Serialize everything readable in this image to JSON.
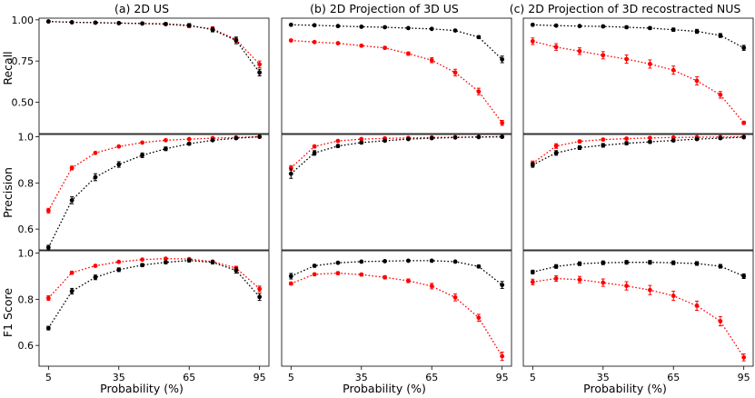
{
  "colors": {
    "red": "#ff0000",
    "black": "#000000"
  },
  "column_titles": [
    "(a) 2D US",
    "(b) 2D Projection of 3D US",
    "(c) 2D Projection of 3D recostracted NUS"
  ],
  "row_labels": [
    "Recall",
    "Precision",
    "F1 Score"
  ],
  "x_axis_label": "Probability (%)",
  "chart_data": [
    {
      "type": "line",
      "panel": "Recall (a)",
      "title": "(a) 2D US",
      "ylabel": "Recall",
      "xlabel": "",
      "x": [
        5,
        15,
        25,
        35,
        45,
        55,
        65,
        75,
        85,
        95
      ],
      "xlim": [
        1,
        99
      ],
      "ylim": [
        0.31,
        1.01
      ],
      "yticks": [
        0.5,
        0.75,
        1.0
      ],
      "ytick_labels": [
        "0.50",
        "0.75",
        "1.00"
      ],
      "xticks": [],
      "xtick_labels": [],
      "series": [
        {
          "name": "red",
          "values": [
            0.99,
            0.985,
            0.983,
            0.98,
            0.977,
            0.973,
            0.962,
            0.945,
            0.88,
            0.73
          ],
          "errors": [
            0.003,
            0.003,
            0.003,
            0.004,
            0.005,
            0.007,
            0.01,
            0.013,
            0.015,
            0.02
          ]
        },
        {
          "name": "black",
          "values": [
            0.99,
            0.985,
            0.983,
            0.98,
            0.978,
            0.975,
            0.967,
            0.94,
            0.875,
            0.68
          ],
          "errors": [
            0.003,
            0.003,
            0.003,
            0.004,
            0.005,
            0.007,
            0.01,
            0.013,
            0.02,
            0.02
          ]
        }
      ]
    },
    {
      "type": "line",
      "panel": "Recall (b)",
      "title": "(b) 2D Projection of 3D US",
      "ylabel": "",
      "xlabel": "",
      "x": [
        5,
        15,
        25,
        35,
        45,
        55,
        65,
        75,
        85,
        95
      ],
      "xlim": [
        1,
        99
      ],
      "ylim": [
        0.31,
        1.01
      ],
      "yticks": [],
      "ytick_labels": [],
      "xticks": [],
      "xtick_labels": [],
      "series": [
        {
          "name": "red",
          "values": [
            0.875,
            0.865,
            0.858,
            0.843,
            0.83,
            0.795,
            0.755,
            0.68,
            0.565,
            0.375
          ],
          "errors": [
            0.005,
            0.005,
            0.006,
            0.007,
            0.008,
            0.01,
            0.015,
            0.02,
            0.02,
            0.015
          ]
        },
        {
          "name": "black",
          "values": [
            0.97,
            0.967,
            0.962,
            0.958,
            0.955,
            0.95,
            0.945,
            0.935,
            0.895,
            0.76
          ],
          "errors": [
            0.003,
            0.003,
            0.003,
            0.003,
            0.004,
            0.004,
            0.004,
            0.005,
            0.008,
            0.02
          ]
        }
      ]
    },
    {
      "type": "line",
      "panel": "Recall (c)",
      "title": "(c) 2D Projection of 3D recostracted NUS",
      "ylabel": "",
      "xlabel": "",
      "x": [
        5,
        15,
        25,
        35,
        45,
        55,
        65,
        75,
        85,
        95
      ],
      "xlim": [
        1,
        99
      ],
      "ylim": [
        0.31,
        1.01
      ],
      "yticks": [],
      "ytick_labels": [],
      "xticks": [],
      "xtick_labels": [],
      "series": [
        {
          "name": "red",
          "values": [
            0.87,
            0.835,
            0.81,
            0.785,
            0.762,
            0.732,
            0.695,
            0.63,
            0.545,
            0.375
          ],
          "errors": [
            0.02,
            0.02,
            0.02,
            0.022,
            0.025,
            0.025,
            0.025,
            0.025,
            0.02,
            0.01
          ]
        },
        {
          "name": "black",
          "values": [
            0.97,
            0.965,
            0.962,
            0.96,
            0.955,
            0.95,
            0.94,
            0.93,
            0.905,
            0.83
          ],
          "errors": [
            0.004,
            0.005,
            0.005,
            0.006,
            0.007,
            0.008,
            0.01,
            0.012,
            0.012,
            0.015
          ]
        }
      ]
    },
    {
      "type": "line",
      "panel": "Precision (a)",
      "title": "",
      "ylabel": "Precision",
      "xlabel": "",
      "x": [
        5,
        15,
        25,
        35,
        45,
        55,
        65,
        75,
        85,
        95
      ],
      "xlim": [
        1,
        99
      ],
      "ylim": [
        0.51,
        1.01
      ],
      "yticks": [
        0.6,
        0.8,
        1.0
      ],
      "ytick_labels": [
        "0.6",
        "0.8",
        "1.0"
      ],
      "xticks": [],
      "xtick_labels": [],
      "series": [
        {
          "name": "red",
          "values": [
            0.68,
            0.865,
            0.93,
            0.958,
            0.975,
            0.985,
            0.99,
            0.994,
            0.997,
            1.0
          ],
          "errors": [
            0.01,
            0.008,
            0.005,
            0.003,
            0.003,
            0.002,
            0.002,
            0.002,
            0.001,
            0.001
          ]
        },
        {
          "name": "black",
          "values": [
            0.52,
            0.725,
            0.825,
            0.88,
            0.92,
            0.948,
            0.97,
            0.985,
            0.994,
            1.0
          ],
          "errors": [
            0.01,
            0.015,
            0.015,
            0.012,
            0.01,
            0.008,
            0.006,
            0.004,
            0.003,
            0.001
          ]
        }
      ]
    },
    {
      "type": "line",
      "panel": "Precision (b)",
      "title": "",
      "ylabel": "",
      "xlabel": "",
      "x": [
        5,
        15,
        25,
        35,
        45,
        55,
        65,
        75,
        85,
        95
      ],
      "xlim": [
        1,
        99
      ],
      "ylim": [
        0.51,
        1.01
      ],
      "yticks": [],
      "ytick_labels": [],
      "xticks": [],
      "xtick_labels": [],
      "series": [
        {
          "name": "red",
          "values": [
            0.865,
            0.958,
            0.982,
            0.99,
            0.993,
            0.995,
            0.997,
            0.998,
            0.999,
            1.0
          ],
          "errors": [
            0.01,
            0.006,
            0.004,
            0.003,
            0.002,
            0.002,
            0.001,
            0.001,
            0.001,
            0.001
          ]
        },
        {
          "name": "black",
          "values": [
            0.84,
            0.93,
            0.96,
            0.975,
            0.983,
            0.99,
            0.994,
            0.997,
            0.999,
            1.0
          ],
          "errors": [
            0.02,
            0.01,
            0.006,
            0.005,
            0.004,
            0.003,
            0.002,
            0.002,
            0.001,
            0.001
          ]
        }
      ]
    },
    {
      "type": "line",
      "panel": "Precision (c)",
      "title": "",
      "ylabel": "",
      "xlabel": "",
      "x": [
        5,
        15,
        25,
        35,
        45,
        55,
        65,
        75,
        85,
        95
      ],
      "xlim": [
        1,
        99
      ],
      "ylim": [
        0.51,
        1.01
      ],
      "yticks": [],
      "ytick_labels": [],
      "xticks": [],
      "xtick_labels": [],
      "series": [
        {
          "name": "red",
          "values": [
            0.885,
            0.96,
            0.98,
            0.988,
            0.992,
            0.995,
            0.997,
            0.998,
            0.999,
            1.0
          ],
          "errors": [
            0.01,
            0.01,
            0.006,
            0.005,
            0.004,
            0.003,
            0.003,
            0.002,
            0.002,
            0.001
          ]
        },
        {
          "name": "black",
          "values": [
            0.878,
            0.93,
            0.953,
            0.963,
            0.972,
            0.978,
            0.984,
            0.99,
            0.994,
            0.998
          ],
          "errors": [
            0.01,
            0.01,
            0.008,
            0.008,
            0.007,
            0.006,
            0.005,
            0.004,
            0.004,
            0.002
          ]
        }
      ]
    },
    {
      "type": "line",
      "panel": "F1 Score (a)",
      "title": "",
      "ylabel": "F1 Score",
      "xlabel": "Probability (%)",
      "x": [
        5,
        15,
        25,
        35,
        45,
        55,
        65,
        75,
        85,
        95
      ],
      "xlim": [
        1,
        99
      ],
      "ylim": [
        0.51,
        1.01
      ],
      "yticks": [
        0.6,
        0.8,
        1.0
      ],
      "ytick_labels": [
        "0.6",
        "0.8",
        "1.0"
      ],
      "xticks": [
        5,
        35,
        65,
        95
      ],
      "xtick_labels": [
        "5",
        "35",
        "65",
        "95"
      ],
      "series": [
        {
          "name": "red",
          "values": [
            0.805,
            0.915,
            0.945,
            0.962,
            0.972,
            0.976,
            0.974,
            0.963,
            0.935,
            0.845
          ],
          "errors": [
            0.01,
            0.006,
            0.004,
            0.003,
            0.003,
            0.004,
            0.005,
            0.006,
            0.008,
            0.012
          ]
        },
        {
          "name": "black",
          "values": [
            0.675,
            0.835,
            0.895,
            0.928,
            0.948,
            0.96,
            0.968,
            0.96,
            0.925,
            0.81
          ],
          "errors": [
            0.008,
            0.012,
            0.01,
            0.008,
            0.007,
            0.006,
            0.006,
            0.007,
            0.012,
            0.015
          ]
        }
      ]
    },
    {
      "type": "line",
      "panel": "F1 Score (b)",
      "title": "",
      "ylabel": "",
      "xlabel": "Probability (%)",
      "x": [
        5,
        15,
        25,
        35,
        45,
        55,
        65,
        75,
        85,
        95
      ],
      "xlim": [
        1,
        99
      ],
      "ylim": [
        0.51,
        1.01
      ],
      "yticks": [],
      "ytick_labels": [],
      "xticks": [
        5,
        35,
        65,
        95
      ],
      "xtick_labels": [
        "5",
        "35",
        "65",
        "95"
      ],
      "series": [
        {
          "name": "red",
          "values": [
            0.868,
            0.908,
            0.913,
            0.907,
            0.895,
            0.88,
            0.857,
            0.808,
            0.72,
            0.553
          ],
          "errors": [
            0.006,
            0.005,
            0.006,
            0.006,
            0.007,
            0.008,
            0.012,
            0.015,
            0.015,
            0.018
          ]
        },
        {
          "name": "black",
          "values": [
            0.9,
            0.945,
            0.958,
            0.963,
            0.965,
            0.967,
            0.967,
            0.963,
            0.942,
            0.862
          ],
          "errors": [
            0.012,
            0.006,
            0.004,
            0.004,
            0.003,
            0.003,
            0.003,
            0.004,
            0.006,
            0.015
          ]
        }
      ]
    },
    {
      "type": "line",
      "panel": "F1 Score (c)",
      "title": "",
      "ylabel": "",
      "xlabel": "Probability (%)",
      "x": [
        5,
        15,
        25,
        35,
        45,
        55,
        65,
        75,
        85,
        95
      ],
      "xlim": [
        1,
        99
      ],
      "ylim": [
        0.51,
        1.01
      ],
      "yticks": [],
      "ytick_labels": [],
      "xticks": [
        5,
        35,
        65,
        95
      ],
      "xtick_labels": [
        "5",
        "35",
        "65",
        "95"
      ],
      "series": [
        {
          "name": "red",
          "values": [
            0.875,
            0.89,
            0.885,
            0.872,
            0.858,
            0.84,
            0.815,
            0.772,
            0.705,
            0.548
          ],
          "errors": [
            0.012,
            0.012,
            0.014,
            0.016,
            0.018,
            0.02,
            0.02,
            0.02,
            0.02,
            0.015
          ]
        },
        {
          "name": "black",
          "values": [
            0.918,
            0.942,
            0.954,
            0.958,
            0.96,
            0.96,
            0.958,
            0.955,
            0.943,
            0.9
          ],
          "errors": [
            0.008,
            0.008,
            0.008,
            0.008,
            0.008,
            0.008,
            0.008,
            0.008,
            0.008,
            0.01
          ]
        }
      ]
    }
  ]
}
